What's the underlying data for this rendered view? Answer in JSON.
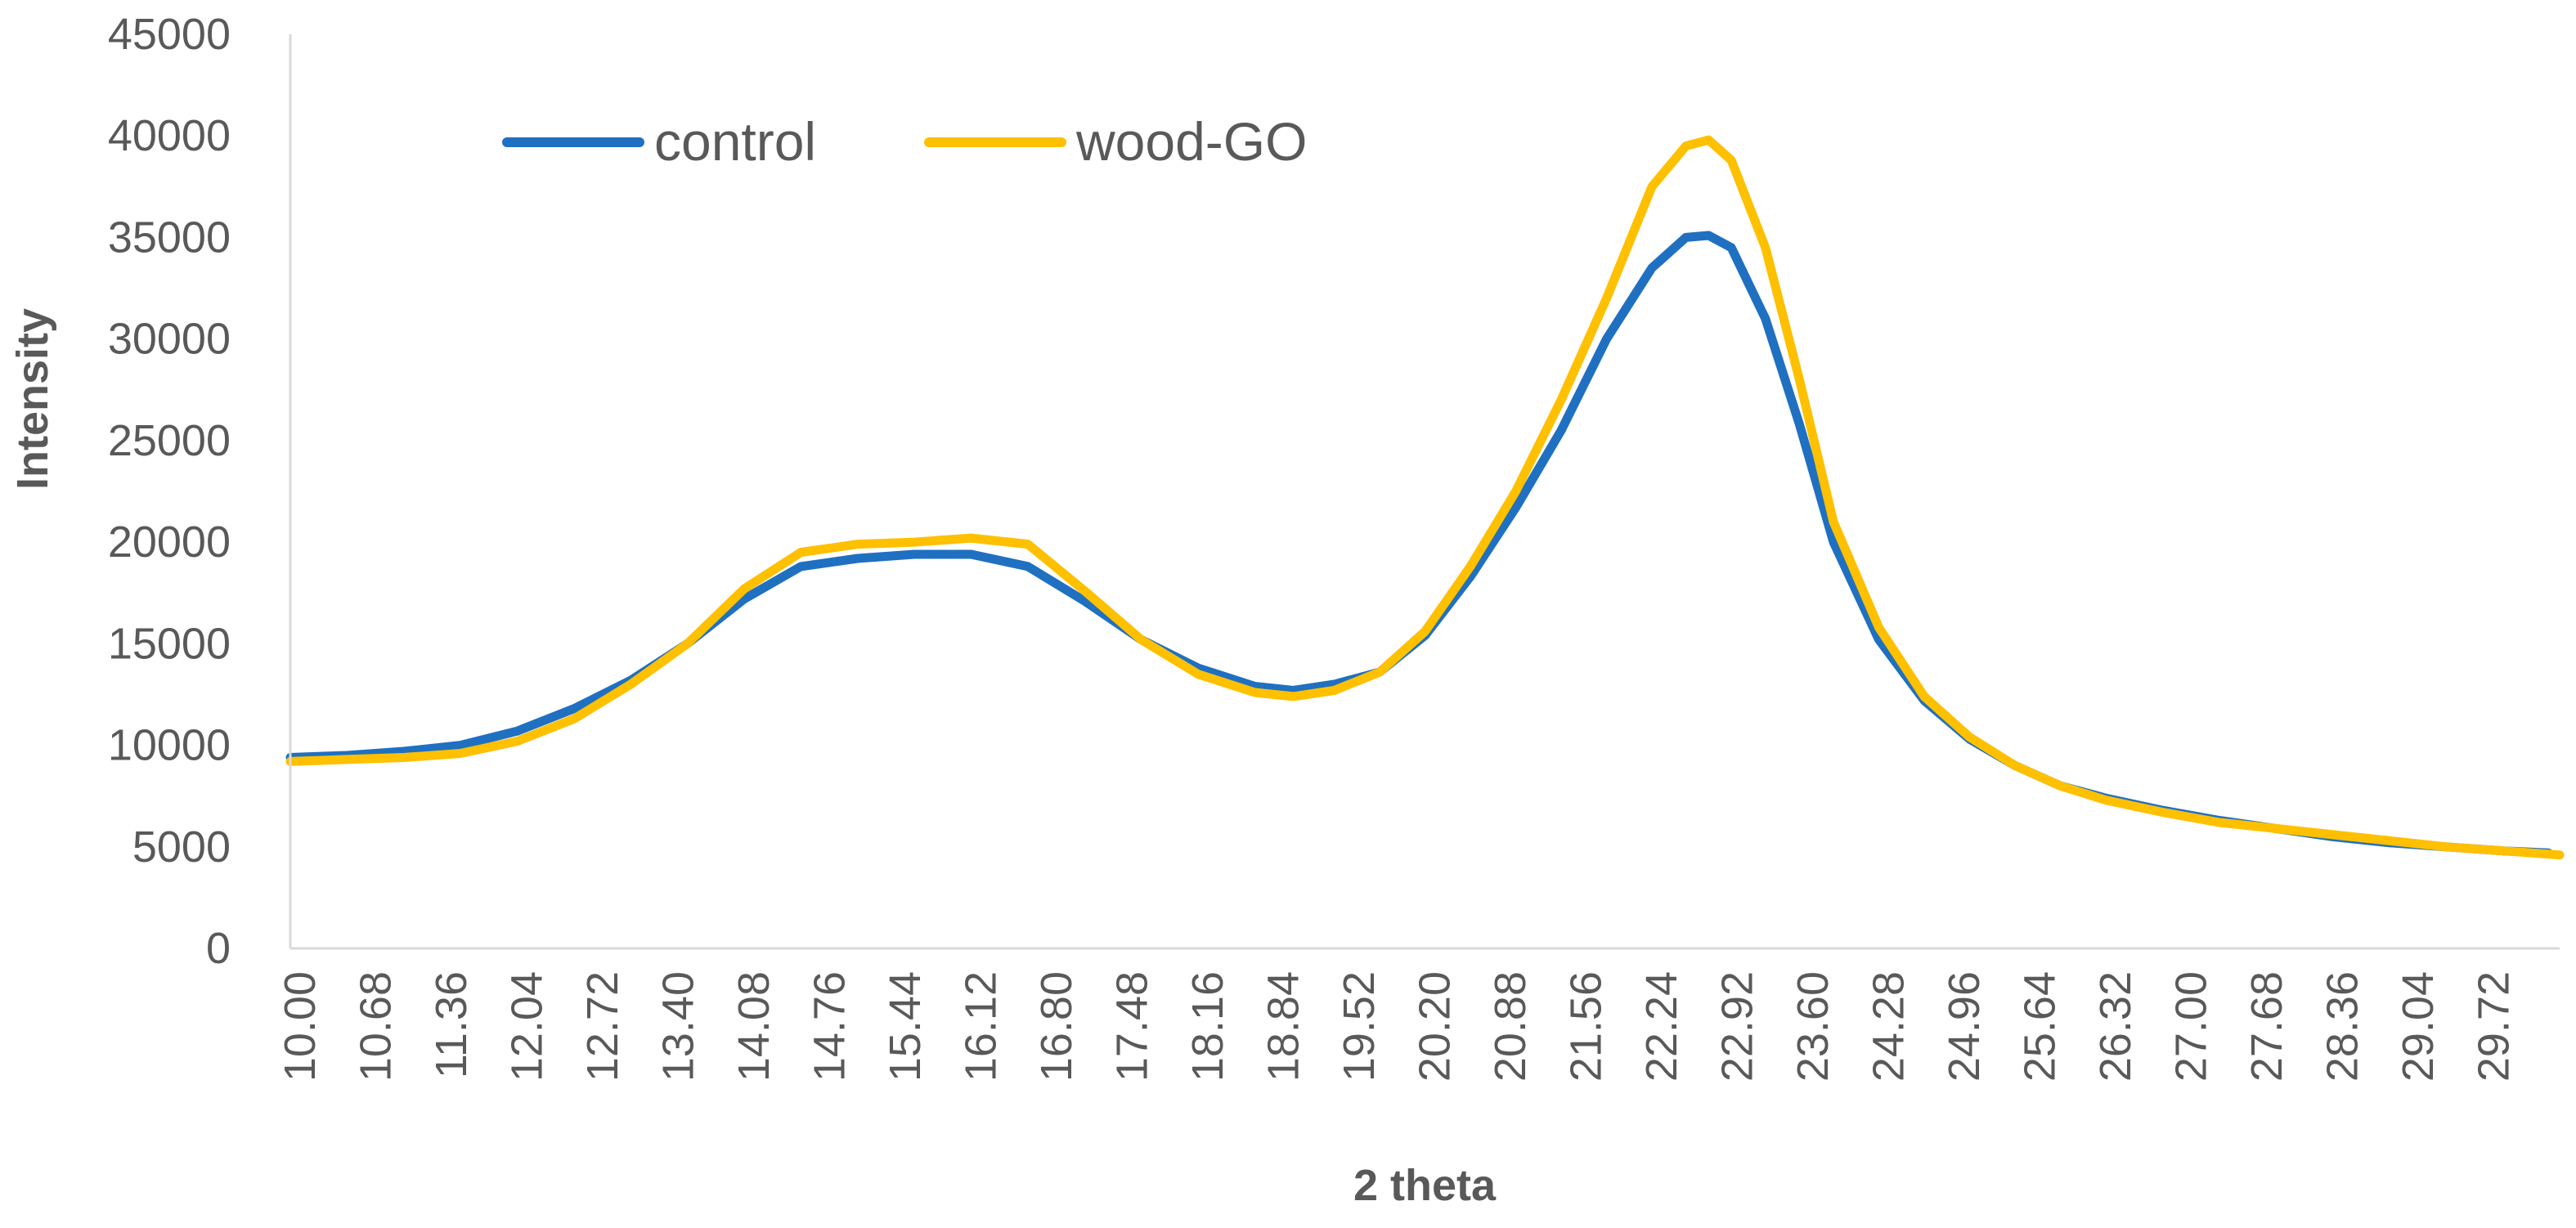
{
  "chart_data": {
    "type": "line",
    "title": "",
    "xlabel": "2 theta",
    "ylabel": "Intensity",
    "xlim": [
      10.0,
      30.0
    ],
    "ylim": [
      0,
      45000
    ],
    "x_tick_labels": [
      "10.00",
      "10.68",
      "11.36",
      "12.04",
      "12.72",
      "13.40",
      "14.08",
      "14.76",
      "15.44",
      "16.12",
      "16.80",
      "17.48",
      "18.16",
      "18.84",
      "19.52",
      "20.20",
      "20.88",
      "21.56",
      "22.24",
      "22.92",
      "23.60",
      "24.28",
      "24.96",
      "25.64",
      "26.32",
      "27.00",
      "27.68",
      "28.36",
      "29.04",
      "29.72"
    ],
    "y_ticks": [
      0,
      5000,
      10000,
      15000,
      20000,
      25000,
      30000,
      35000,
      40000,
      45000
    ],
    "y_tick_labels": [
      "0",
      "5000",
      "10000",
      "15000",
      "20000",
      "25000",
      "30000",
      "35000",
      "40000",
      "45000"
    ],
    "legend_position": "top-left",
    "series": [
      {
        "name": "control",
        "color": "#1F70C1",
        "x": [
          10.0,
          10.5,
          11.0,
          11.5,
          12.0,
          12.5,
          13.0,
          13.5,
          14.0,
          14.5,
          15.0,
          15.5,
          16.0,
          16.5,
          17.0,
          17.5,
          18.0,
          18.5,
          18.84,
          19.2,
          19.6,
          20.0,
          20.4,
          20.8,
          21.2,
          21.6,
          22.0,
          22.3,
          22.5,
          22.7,
          23.0,
          23.3,
          23.6,
          24.0,
          24.4,
          24.8,
          25.2,
          25.6,
          26.0,
          26.5,
          27.0,
          27.5,
          28.0,
          28.5,
          29.0,
          29.5,
          29.9
        ],
        "values": [
          9400,
          9500,
          9700,
          10000,
          10700,
          11800,
          13200,
          15000,
          17200,
          18800,
          19200,
          19400,
          19400,
          18800,
          17100,
          15200,
          13800,
          12900,
          12700,
          13000,
          13600,
          15400,
          18300,
          21700,
          25500,
          30000,
          33500,
          35000,
          35100,
          34500,
          31000,
          25800,
          20000,
          15200,
          12200,
          10300,
          9000,
          8000,
          7400,
          6800,
          6300,
          5900,
          5500,
          5200,
          5000,
          4800,
          4700
        ]
      },
      {
        "name": "wood-GO",
        "color": "#FFC000",
        "x": [
          10.0,
          10.5,
          11.0,
          11.5,
          12.0,
          12.5,
          13.0,
          13.5,
          14.0,
          14.5,
          15.0,
          15.5,
          16.0,
          16.5,
          17.0,
          17.5,
          18.0,
          18.5,
          18.84,
          19.2,
          19.6,
          20.0,
          20.4,
          20.8,
          21.2,
          21.6,
          22.0,
          22.3,
          22.5,
          22.7,
          23.0,
          23.3,
          23.6,
          24.0,
          24.4,
          24.8,
          25.2,
          25.6,
          26.0,
          26.5,
          27.0,
          27.5,
          28.0,
          28.5,
          29.0,
          29.5,
          30.0
        ],
        "values": [
          9200,
          9300,
          9400,
          9600,
          10200,
          11300,
          13000,
          15000,
          17700,
          19500,
          19900,
          20000,
          20200,
          19900,
          17600,
          15200,
          13500,
          12600,
          12400,
          12700,
          13600,
          15600,
          18800,
          22500,
          27000,
          32000,
          37500,
          39500,
          39800,
          38800,
          34500,
          28000,
          21000,
          15800,
          12400,
          10400,
          9000,
          8000,
          7300,
          6700,
          6200,
          5900,
          5600,
          5300,
          5000,
          4800,
          4600
        ]
      }
    ]
  }
}
